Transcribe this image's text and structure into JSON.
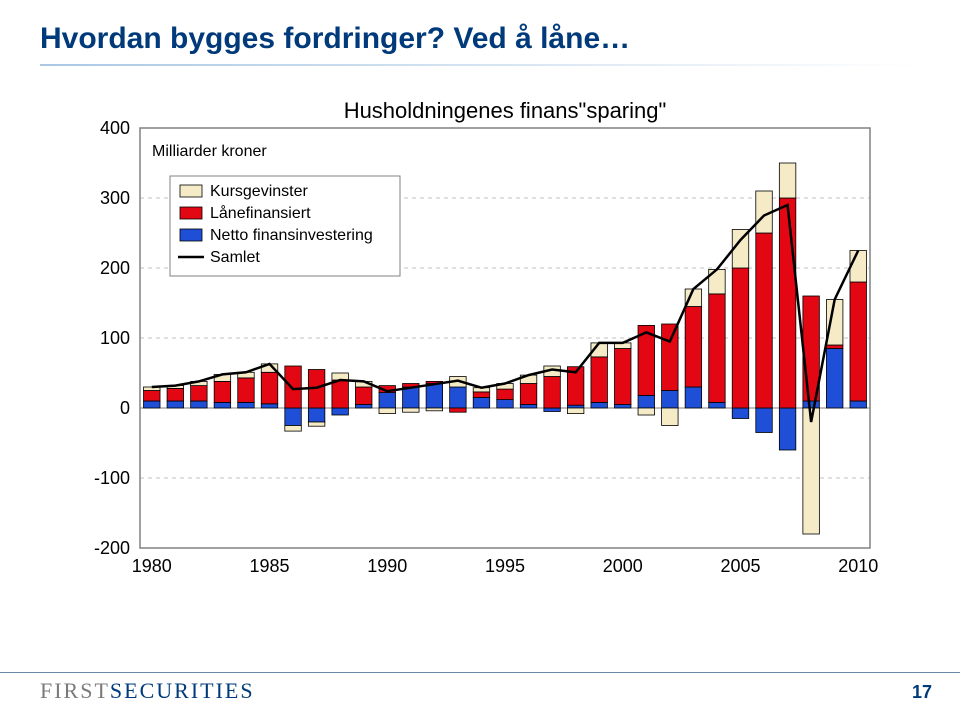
{
  "title": "Hvordan bygges fordringer? Ved å låne…",
  "page_number": "17",
  "logo": {
    "part1": "FIRST",
    "part2": "SECURITIES"
  },
  "chart": {
    "type": "stacked-bar-with-line",
    "chart_title": "Husholdningenes finans\"sparing\"",
    "chart_title_fontsize": 22,
    "subtitle": "Milliarder kroner",
    "subtitle_fontsize": 16,
    "background_color": "#ffffff",
    "plot_border_color": "#808080",
    "grid_color": "#c0c0c0",
    "grid_style": "dashed",
    "axis_label_color": "#000000",
    "axis_label_fontsize": 18,
    "ylim": [
      -200,
      400
    ],
    "ytick_step": 100,
    "x_categories": [
      1980,
      1981,
      1982,
      1983,
      1984,
      1985,
      1986,
      1987,
      1988,
      1989,
      1990,
      1991,
      1992,
      1993,
      1994,
      1995,
      1996,
      1997,
      1998,
      1999,
      2000,
      2001,
      2002,
      2003,
      2004,
      2005,
      2006,
      2007,
      2008,
      2009,
      2010
    ],
    "x_tick_labels": [
      "1980",
      "1985",
      "1990",
      "1995",
      "2000",
      "2005",
      "2010"
    ],
    "legend": {
      "box_border_color": "#808080",
      "box_fill": "#ffffff",
      "fontsize": 16,
      "items": [
        {
          "label": "Kursgevinster",
          "type": "swatch",
          "color": "#f5ecc7",
          "border": "#000000"
        },
        {
          "label": "Lånefinansiert",
          "type": "swatch",
          "color": "#e30613",
          "border": "#000000"
        },
        {
          "label": "Netto finansinvestering",
          "type": "swatch",
          "color": "#1f4fd6",
          "border": "#000000"
        },
        {
          "label": "Samlet",
          "type": "line",
          "color": "#000000"
        }
      ]
    },
    "series": {
      "Kursgevinster": [
        5,
        4,
        6,
        10,
        8,
        12,
        -8,
        -6,
        10,
        8,
        -8,
        -6,
        -4,
        15,
        6,
        8,
        12,
        15,
        -8,
        20,
        8,
        -10,
        -25,
        25,
        35,
        55,
        60,
        50,
        -180,
        65,
        45
      ],
      "Lånefinansiert": [
        15,
        18,
        22,
        30,
        35,
        45,
        60,
        55,
        40,
        25,
        10,
        5,
        3,
        -6,
        8,
        15,
        30,
        45,
        55,
        65,
        80,
        100,
        95,
        115,
        155,
        200,
        250,
        300,
        150,
        5,
        170
      ],
      "Netto_finansinvestering": [
        10,
        10,
        10,
        8,
        8,
        6,
        -25,
        -20,
        -10,
        5,
        22,
        30,
        35,
        30,
        15,
        12,
        5,
        -5,
        4,
        8,
        5,
        18,
        25,
        30,
        8,
        -15,
        -35,
        -60,
        10,
        85,
        10
      ]
    },
    "samlet_line": [
      30,
      32,
      38,
      48,
      51,
      63,
      27,
      29,
      40,
      38,
      24,
      29,
      34,
      39,
      29,
      35,
      47,
      55,
      51,
      93,
      93,
      108,
      95,
      170,
      198,
      240,
      275,
      290,
      -20,
      155,
      225
    ],
    "colors": {
      "Kursgevinster": "#f5ecc7",
      "Lånefinansiert": "#e30613",
      "Netto_finansinvestering": "#1f4fd6",
      "Samlet": "#000000",
      "bar_border": "#000000"
    },
    "line_width": 2.5,
    "bar_width_ratio": 0.7
  }
}
